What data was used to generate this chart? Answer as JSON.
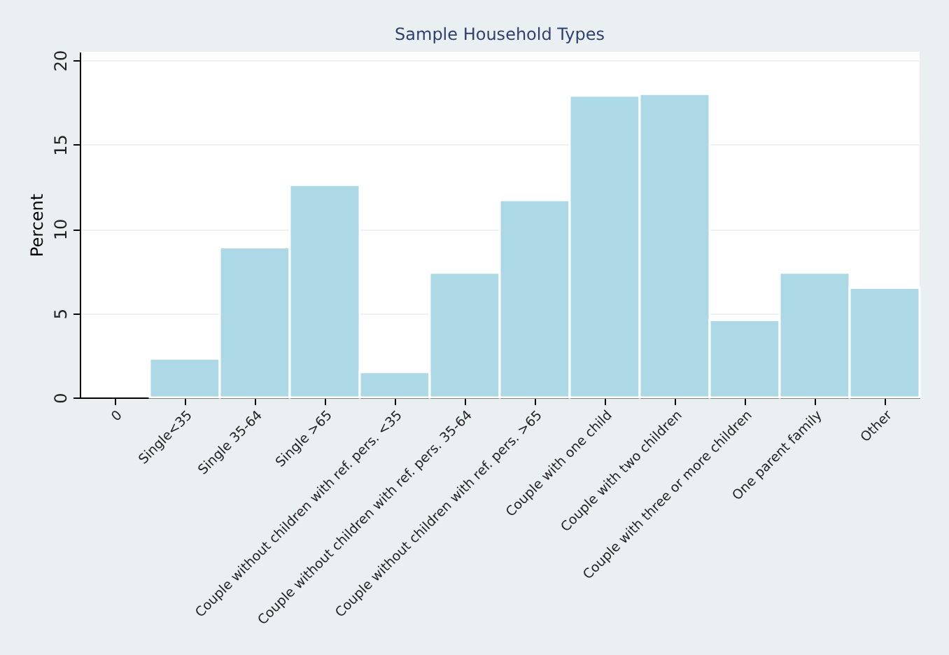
{
  "chart_data": {
    "type": "bar",
    "title": "Sample Household Types",
    "ylabel": "Percent",
    "categories": [
      "0",
      "Single<35",
      "Single 35-64",
      "Single >65",
      "Couple without children with ref. pers. <35",
      "Couple without children with ref. pers. 35-64",
      "Couple without children with ref. pers. >65",
      "Couple with one child",
      "Couple with two children",
      "Couple with three or more children",
      "One parent family",
      "Other"
    ],
    "values": [
      null,
      2.3,
      8.9,
      12.6,
      1.5,
      7.4,
      11.7,
      17.9,
      18.0,
      4.6,
      7.4,
      6.5
    ],
    "color": "#add8e6",
    "ylim": [
      0,
      20.5
    ],
    "yticks": [
      0,
      5,
      10,
      15,
      20
    ],
    "grid": "y"
  }
}
